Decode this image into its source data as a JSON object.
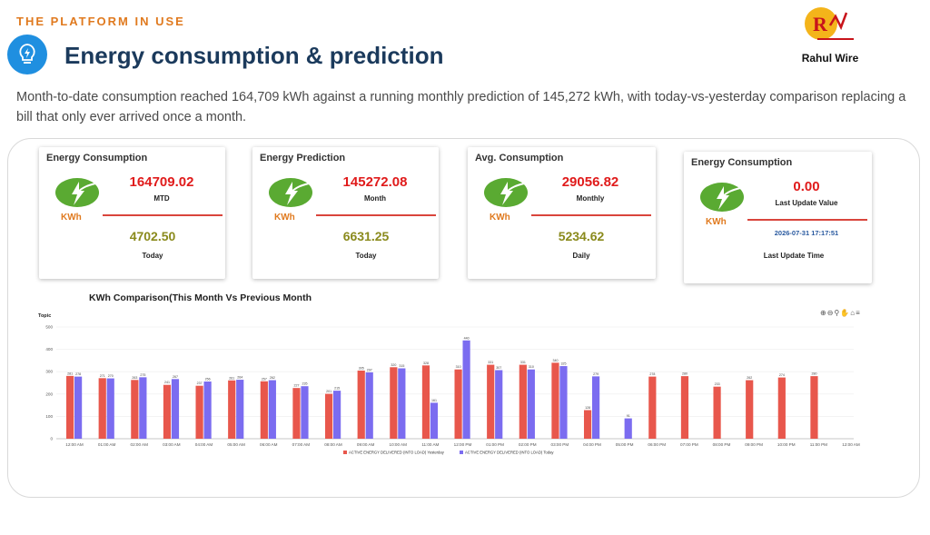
{
  "header": {
    "kicker": "THE PLATFORM IN USE",
    "title": "Energy consumption & prediction",
    "brand": "Rahul Wire",
    "description": "Month-to-date consumption reached 164,709 kWh against a running monthly prediction of 145,272 kWh, with today-vs-yesterday comparison replacing a bill that only ever arrived once a month."
  },
  "cards": {
    "consumption": {
      "title": "Energy Consumption",
      "unit": "KWh",
      "main_value": "164709.02",
      "main_label": "MTD",
      "sub_value": "4702.50",
      "sub_label": "Today"
    },
    "prediction": {
      "title": "Energy Prediction",
      "unit": "KWh",
      "main_value": "145272.08",
      "main_label": "Month",
      "sub_value": "6631.25",
      "sub_label": "Today"
    },
    "average": {
      "title": "Avg. Consumption",
      "unit": "KWh",
      "main_value": "29056.82",
      "main_label": "Monthly",
      "sub_value": "5234.62",
      "sub_label": "Daily"
    },
    "last_update": {
      "title": "Energy Consumption",
      "unit": "KWh",
      "main_value": "0.00",
      "main_label": "Last Update Value",
      "timestamp": "2026-07-31 17:17:51",
      "timestamp_label": "Last Update Time"
    }
  },
  "chart": {
    "title": "KWh Comparison(This Month Vs Previous Month",
    "toolbar_icons": [
      "zoom-in-icon",
      "zoom-out-icon",
      "search-icon",
      "pan-icon",
      "home-icon",
      "menu-icon"
    ]
  },
  "chart_data": {
    "type": "bar",
    "ylabel": "Topic",
    "ylim": [
      0,
      500
    ],
    "yticks": [
      0,
      100,
      200,
      300,
      400,
      500
    ],
    "categories": [
      "12:00 AM",
      "01:00 AM",
      "02:00 AM",
      "03:00 AM",
      "04:00 AM",
      "05:00 AM",
      "06:00 AM",
      "07:00 AM",
      "08:00 AM",
      "09:00 AM",
      "10:00 AM",
      "11:00 AM",
      "12:00 PM",
      "01:00 PM",
      "02:00 PM",
      "03:00 PM",
      "04:00 PM",
      "05:00 PM",
      "06:00 PM",
      "07:00 PM",
      "08:00 PM",
      "09:00 PM",
      "10:00 PM",
      "11:00 PM",
      "12:00 AM"
    ],
    "series": [
      {
        "name": "ACTIVE ENERGY DELIVERED (INTO LOAD) Yesterday",
        "color": "#e8574c",
        "values": [
          281,
          271,
          263,
          241,
          237,
          261,
          257,
          227,
          201,
          305,
          320,
          328,
          310,
          331,
          331,
          340,
          128,
          null,
          278,
          280,
          233,
          262,
          274,
          280,
          null
        ]
      },
      {
        "name": "ACTIVE ENERGY DELIVERED (INTO LOAD) Today",
        "color": "#7b6cf0",
        "values": [
          278,
          270,
          275,
          267,
          256,
          264,
          262,
          235,
          215,
          297,
          315,
          161,
          440,
          307,
          310,
          325,
          279,
          91,
          null,
          null,
          null,
          null,
          null,
          null,
          null
        ]
      }
    ],
    "legend_position": "bottom"
  }
}
